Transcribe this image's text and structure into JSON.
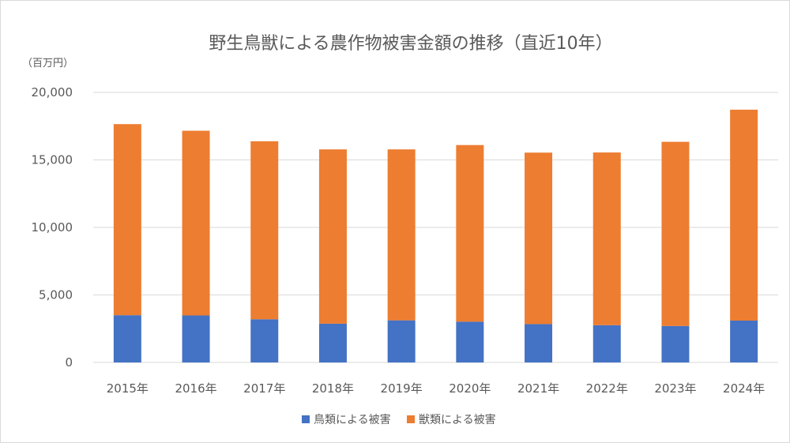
{
  "chart_data": {
    "type": "bar",
    "stacked": true,
    "title": "野生鳥獣による農作物被害金額の推移（直近10年）",
    "ylabel": "（百万円）",
    "xlabel": "",
    "categories": [
      "2015年",
      "2016年",
      "2017年",
      "2018年",
      "2019年",
      "2020年",
      "2021年",
      "2022年",
      "2023年",
      "2024年"
    ],
    "series": [
      {
        "name": "鳥類による被害",
        "color": "#4472C4",
        "values": [
          3500,
          3480,
          3200,
          2870,
          3120,
          3020,
          2840,
          2760,
          2700,
          3100
        ]
      },
      {
        "name": "獣類による被害",
        "color": "#ED7D31",
        "values": [
          14150,
          13680,
          13180,
          12910,
          12660,
          13080,
          12700,
          12790,
          13640,
          15620
        ]
      }
    ],
    "ylim": [
      0,
      20000
    ],
    "yticks": [
      0,
      5000,
      10000,
      15000,
      20000
    ],
    "ytick_labels": [
      "0",
      "5,000",
      "10,000",
      "15,000",
      "20,000"
    ],
    "grid": true,
    "legend": "bottom"
  }
}
